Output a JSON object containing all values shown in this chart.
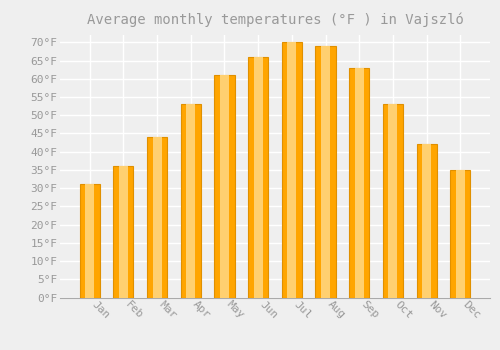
{
  "title": "Average monthly temperatures (°F ) in Vajszló",
  "months": [
    "Jan",
    "Feb",
    "Mar",
    "Apr",
    "May",
    "Jun",
    "Jul",
    "Aug",
    "Sep",
    "Oct",
    "Nov",
    "Dec"
  ],
  "values": [
    31,
    36,
    44,
    53,
    61,
    66,
    70,
    69,
    63,
    53,
    42,
    35
  ],
  "bar_color": "#FFA500",
  "bar_edge_color": "#E09000",
  "background_color": "#EFEFEF",
  "grid_color": "#FFFFFF",
  "text_color": "#999999",
  "ylim": [
    0,
    72
  ],
  "yticks": [
    0,
    5,
    10,
    15,
    20,
    25,
    30,
    35,
    40,
    45,
    50,
    55,
    60,
    65,
    70
  ],
  "title_fontsize": 10,
  "tick_fontsize": 8,
  "bar_width": 0.6
}
